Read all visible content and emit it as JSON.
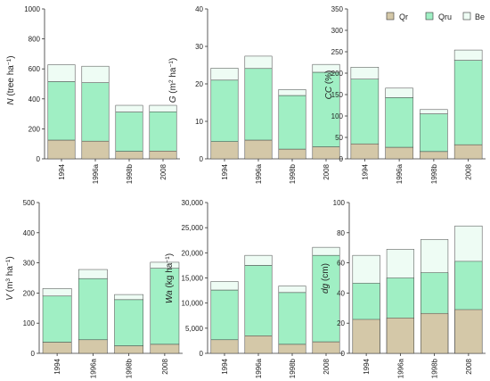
{
  "colors": {
    "Qr": "#d4c8a8",
    "Qru": "#a0efc4",
    "Be": "#eefcf4",
    "stroke": "#333333"
  },
  "legend": [
    {
      "key": "Qr",
      "label": "Qr"
    },
    {
      "key": "Qru",
      "label": "Qru"
    },
    {
      "key": "Be",
      "label": "Be"
    }
  ],
  "chart_data": [
    {
      "type": "bar",
      "stacked": true,
      "ylabel_parts": [
        {
          "t": "N",
          "i": true
        },
        {
          "t": " (tree ha"
        },
        {
          "t": "−1",
          "s": true
        },
        {
          "t": ")"
        }
      ],
      "ylim": [
        0,
        1000
      ],
      "yticks": [
        "0",
        "200",
        "400",
        "600",
        "800",
        "1000"
      ],
      "categories": [
        "1994",
        "1996a",
        "1998b",
        "2008"
      ],
      "series": [
        {
          "name": "Qr",
          "values": [
            125,
            118,
            50,
            52
          ]
        },
        {
          "name": "Qru",
          "values": [
            390,
            390,
            262,
            262
          ]
        },
        {
          "name": "Be",
          "values": [
            113,
            110,
            45,
            43
          ]
        }
      ]
    },
    {
      "type": "bar",
      "stacked": true,
      "ylabel_parts": [
        {
          "t": "G",
          "i": true
        },
        {
          "t": " (m"
        },
        {
          "t": "2",
          "s": true
        },
        {
          "t": " ha"
        },
        {
          "t": "−1",
          "s": true
        },
        {
          "t": ")"
        }
      ],
      "ylim": [
        0,
        40
      ],
      "yticks": [
        "0",
        "10",
        "20",
        "30",
        "40"
      ],
      "categories": [
        "1994",
        "1996a",
        "1998b",
        "2008"
      ],
      "series": [
        {
          "name": "Qr",
          "values": [
            4.6,
            5.0,
            2.6,
            3.2
          ]
        },
        {
          "name": "Qru",
          "values": [
            16.4,
            19.1,
            14.3,
            19.9
          ]
        },
        {
          "name": "Be",
          "values": [
            3.2,
            3.3,
            1.6,
            2.1
          ]
        }
      ]
    },
    {
      "type": "bar",
      "stacked": true,
      "ylabel_parts": [
        {
          "t": "CC",
          "i": true
        },
        {
          "t": " (%)"
        }
      ],
      "ylim": [
        0,
        350
      ],
      "yticks": [
        "0",
        "50",
        "100",
        "150",
        "200",
        "250",
        "300",
        "350"
      ],
      "categories": [
        "1994",
        "1996a",
        "1998b",
        "2008"
      ],
      "series": [
        {
          "name": "Qr",
          "values": [
            35,
            27,
            17,
            33
          ]
        },
        {
          "name": "Qru",
          "values": [
            151,
            116,
            88,
            197
          ]
        },
        {
          "name": "Be",
          "values": [
            28,
            22,
            10,
            24
          ]
        }
      ]
    },
    {
      "type": "bar",
      "stacked": true,
      "ylabel_parts": [
        {
          "t": "V",
          "i": true
        },
        {
          "t": " (m"
        },
        {
          "t": "3",
          "s": true
        },
        {
          "t": " ha"
        },
        {
          "t": "−1",
          "s": true
        },
        {
          "t": ")"
        }
      ],
      "ylim": [
        0,
        500
      ],
      "yticks": [
        "0",
        "100",
        "200",
        "300",
        "400",
        "500"
      ],
      "categories": [
        "1994",
        "1996a",
        "1998b",
        "2008"
      ],
      "series": [
        {
          "name": "Qr",
          "values": [
            37,
            45,
            25,
            30
          ]
        },
        {
          "name": "Qru",
          "values": [
            153,
            203,
            153,
            252
          ]
        },
        {
          "name": "Be",
          "values": [
            25,
            30,
            17,
            20
          ]
        }
      ]
    },
    {
      "type": "bar",
      "stacked": true,
      "ylabel_parts": [
        {
          "t": "Wa",
          "i": true
        },
        {
          "t": " (kg ha"
        },
        {
          "t": "−1",
          "s": true
        },
        {
          "t": ")"
        }
      ],
      "ylim": [
        0,
        30000
      ],
      "yticks": [
        "0",
        "5,000",
        "10,000",
        "15,000",
        "20,000",
        "25,000",
        "30,000"
      ],
      "categories": [
        "1994",
        "1996a",
        "1998b",
        "2008"
      ],
      "series": [
        {
          "name": "Qr",
          "values": [
            2700,
            3500,
            1800,
            2300
          ]
        },
        {
          "name": "Qru",
          "values": [
            9900,
            14000,
            10300,
            17200
          ]
        },
        {
          "name": "Be",
          "values": [
            1700,
            2000,
            1300,
            1600
          ]
        }
      ]
    },
    {
      "type": "bar",
      "stacked": false,
      "overlay": true,
      "ylabel_parts": [
        {
          "t": "dg",
          "i": true
        },
        {
          "t": " (cm)"
        }
      ],
      "ylim": [
        0,
        100
      ],
      "yticks": [
        "0",
        "20",
        "40",
        "60",
        "80",
        "100"
      ],
      "categories": [
        "1994",
        "1996a",
        "1998b",
        "2008"
      ],
      "series": [
        {
          "name": "Qr",
          "values": [
            22.5,
            23.5,
            26.5,
            29
          ]
        },
        {
          "name": "Qru",
          "values": [
            46.5,
            50,
            53.5,
            61
          ]
        },
        {
          "name": "Be",
          "values": [
            65,
            69,
            75.5,
            84.5
          ]
        }
      ]
    }
  ]
}
